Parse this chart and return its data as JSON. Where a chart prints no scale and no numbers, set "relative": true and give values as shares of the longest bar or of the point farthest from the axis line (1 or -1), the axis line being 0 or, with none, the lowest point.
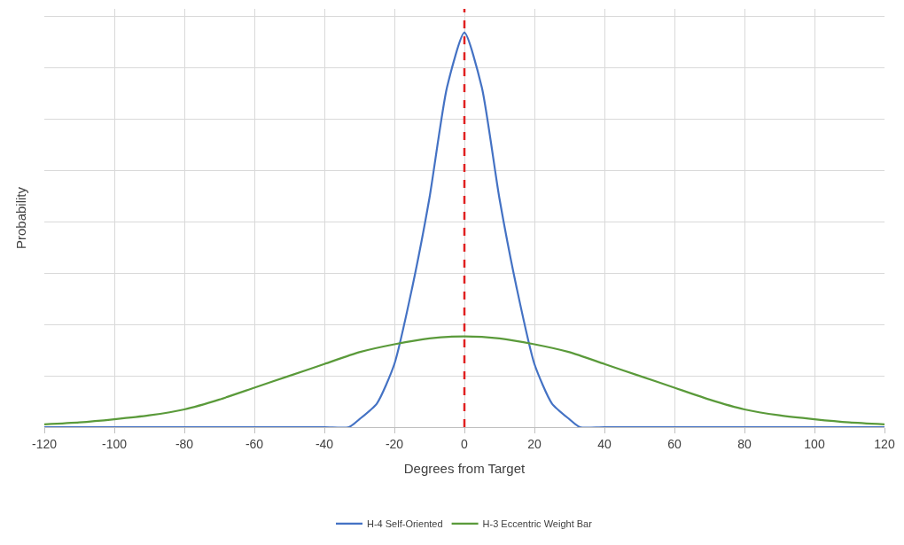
{
  "chart_data": {
    "type": "line",
    "xlabel": "Degrees from Target",
    "ylabel": "Probability",
    "relative": true,
    "xlim": [
      -120,
      120
    ],
    "xticks": [
      -120,
      -100,
      -80,
      -60,
      -40,
      -20,
      0,
      20,
      40,
      60,
      80,
      100,
      120
    ],
    "grid": true,
    "legend": "bottom",
    "marker": "none",
    "line_style": "solid",
    "series": [
      {
        "name": "H-4 Self-Oriented",
        "color": "#4472c4",
        "x": [
          -120,
          -80,
          -40,
          -33,
          -30,
          -25,
          -20,
          -15,
          -10,
          -5,
          0,
          5,
          10,
          15,
          20,
          25,
          30,
          33,
          40,
          80,
          120
        ],
        "values": [
          0,
          0,
          0,
          0,
          0.02,
          0.06,
          0.16,
          0.35,
          0.58,
          0.86,
          1.0,
          0.86,
          0.58,
          0.35,
          0.16,
          0.06,
          0.02,
          0,
          0,
          0,
          0
        ]
      },
      {
        "name": "H-3 Eccentric Weight Bar",
        "color": "#5a9a3a",
        "x": [
          -120,
          -110,
          -100,
          -90,
          -80,
          -70,
          -60,
          -50,
          -40,
          -30,
          -20,
          -10,
          0,
          10,
          20,
          30,
          40,
          50,
          60,
          70,
          80,
          90,
          100,
          110,
          120
        ],
        "values": [
          0.007,
          0.012,
          0.02,
          0.03,
          0.045,
          0.07,
          0.1,
          0.13,
          0.16,
          0.19,
          0.21,
          0.225,
          0.23,
          0.225,
          0.21,
          0.19,
          0.16,
          0.13,
          0.1,
          0.07,
          0.045,
          0.03,
          0.02,
          0.012,
          0.007
        ]
      }
    ],
    "ref_lines": [
      {
        "axis": "x",
        "value": 0,
        "color": "#e02020",
        "line_style": "dashed"
      }
    ]
  }
}
